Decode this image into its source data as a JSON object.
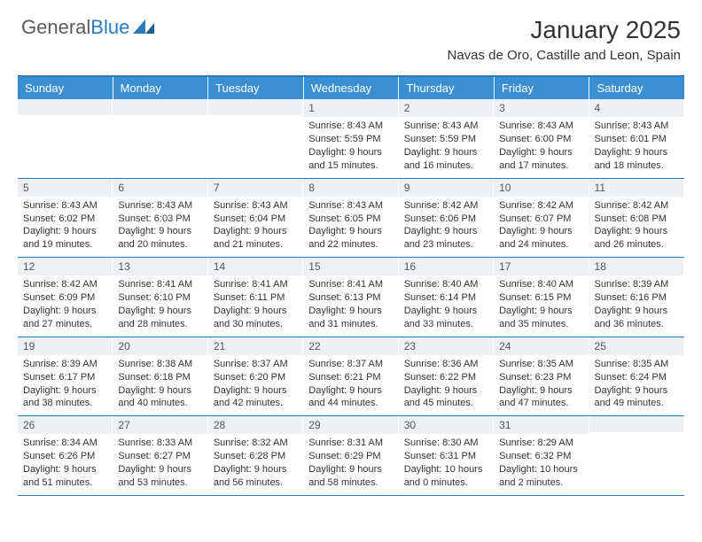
{
  "logo": {
    "text1": "General",
    "text2": "Blue"
  },
  "title": "January 2025",
  "location": "Navas de Oro, Castille and Leon, Spain",
  "colors": {
    "header_bg": "#3b8fd1",
    "border": "#2b7bbc",
    "daynum_bg": "#eef1f4",
    "text": "#333333"
  },
  "day_headers": [
    "Sunday",
    "Monday",
    "Tuesday",
    "Wednesday",
    "Thursday",
    "Friday",
    "Saturday"
  ],
  "weeks": [
    [
      {
        "n": "",
        "sr": "",
        "ss": "",
        "dl": ""
      },
      {
        "n": "",
        "sr": "",
        "ss": "",
        "dl": ""
      },
      {
        "n": "",
        "sr": "",
        "ss": "",
        "dl": ""
      },
      {
        "n": "1",
        "sr": "Sunrise: 8:43 AM",
        "ss": "Sunset: 5:59 PM",
        "dl": "Daylight: 9 hours and 15 minutes."
      },
      {
        "n": "2",
        "sr": "Sunrise: 8:43 AM",
        "ss": "Sunset: 5:59 PM",
        "dl": "Daylight: 9 hours and 16 minutes."
      },
      {
        "n": "3",
        "sr": "Sunrise: 8:43 AM",
        "ss": "Sunset: 6:00 PM",
        "dl": "Daylight: 9 hours and 17 minutes."
      },
      {
        "n": "4",
        "sr": "Sunrise: 8:43 AM",
        "ss": "Sunset: 6:01 PM",
        "dl": "Daylight: 9 hours and 18 minutes."
      }
    ],
    [
      {
        "n": "5",
        "sr": "Sunrise: 8:43 AM",
        "ss": "Sunset: 6:02 PM",
        "dl": "Daylight: 9 hours and 19 minutes."
      },
      {
        "n": "6",
        "sr": "Sunrise: 8:43 AM",
        "ss": "Sunset: 6:03 PM",
        "dl": "Daylight: 9 hours and 20 minutes."
      },
      {
        "n": "7",
        "sr": "Sunrise: 8:43 AM",
        "ss": "Sunset: 6:04 PM",
        "dl": "Daylight: 9 hours and 21 minutes."
      },
      {
        "n": "8",
        "sr": "Sunrise: 8:43 AM",
        "ss": "Sunset: 6:05 PM",
        "dl": "Daylight: 9 hours and 22 minutes."
      },
      {
        "n": "9",
        "sr": "Sunrise: 8:42 AM",
        "ss": "Sunset: 6:06 PM",
        "dl": "Daylight: 9 hours and 23 minutes."
      },
      {
        "n": "10",
        "sr": "Sunrise: 8:42 AM",
        "ss": "Sunset: 6:07 PM",
        "dl": "Daylight: 9 hours and 24 minutes."
      },
      {
        "n": "11",
        "sr": "Sunrise: 8:42 AM",
        "ss": "Sunset: 6:08 PM",
        "dl": "Daylight: 9 hours and 26 minutes."
      }
    ],
    [
      {
        "n": "12",
        "sr": "Sunrise: 8:42 AM",
        "ss": "Sunset: 6:09 PM",
        "dl": "Daylight: 9 hours and 27 minutes."
      },
      {
        "n": "13",
        "sr": "Sunrise: 8:41 AM",
        "ss": "Sunset: 6:10 PM",
        "dl": "Daylight: 9 hours and 28 minutes."
      },
      {
        "n": "14",
        "sr": "Sunrise: 8:41 AM",
        "ss": "Sunset: 6:11 PM",
        "dl": "Daylight: 9 hours and 30 minutes."
      },
      {
        "n": "15",
        "sr": "Sunrise: 8:41 AM",
        "ss": "Sunset: 6:13 PM",
        "dl": "Daylight: 9 hours and 31 minutes."
      },
      {
        "n": "16",
        "sr": "Sunrise: 8:40 AM",
        "ss": "Sunset: 6:14 PM",
        "dl": "Daylight: 9 hours and 33 minutes."
      },
      {
        "n": "17",
        "sr": "Sunrise: 8:40 AM",
        "ss": "Sunset: 6:15 PM",
        "dl": "Daylight: 9 hours and 35 minutes."
      },
      {
        "n": "18",
        "sr": "Sunrise: 8:39 AM",
        "ss": "Sunset: 6:16 PM",
        "dl": "Daylight: 9 hours and 36 minutes."
      }
    ],
    [
      {
        "n": "19",
        "sr": "Sunrise: 8:39 AM",
        "ss": "Sunset: 6:17 PM",
        "dl": "Daylight: 9 hours and 38 minutes."
      },
      {
        "n": "20",
        "sr": "Sunrise: 8:38 AM",
        "ss": "Sunset: 6:18 PM",
        "dl": "Daylight: 9 hours and 40 minutes."
      },
      {
        "n": "21",
        "sr": "Sunrise: 8:37 AM",
        "ss": "Sunset: 6:20 PM",
        "dl": "Daylight: 9 hours and 42 minutes."
      },
      {
        "n": "22",
        "sr": "Sunrise: 8:37 AM",
        "ss": "Sunset: 6:21 PM",
        "dl": "Daylight: 9 hours and 44 minutes."
      },
      {
        "n": "23",
        "sr": "Sunrise: 8:36 AM",
        "ss": "Sunset: 6:22 PM",
        "dl": "Daylight: 9 hours and 45 minutes."
      },
      {
        "n": "24",
        "sr": "Sunrise: 8:35 AM",
        "ss": "Sunset: 6:23 PM",
        "dl": "Daylight: 9 hours and 47 minutes."
      },
      {
        "n": "25",
        "sr": "Sunrise: 8:35 AM",
        "ss": "Sunset: 6:24 PM",
        "dl": "Daylight: 9 hours and 49 minutes."
      }
    ],
    [
      {
        "n": "26",
        "sr": "Sunrise: 8:34 AM",
        "ss": "Sunset: 6:26 PM",
        "dl": "Daylight: 9 hours and 51 minutes."
      },
      {
        "n": "27",
        "sr": "Sunrise: 8:33 AM",
        "ss": "Sunset: 6:27 PM",
        "dl": "Daylight: 9 hours and 53 minutes."
      },
      {
        "n": "28",
        "sr": "Sunrise: 8:32 AM",
        "ss": "Sunset: 6:28 PM",
        "dl": "Daylight: 9 hours and 56 minutes."
      },
      {
        "n": "29",
        "sr": "Sunrise: 8:31 AM",
        "ss": "Sunset: 6:29 PM",
        "dl": "Daylight: 9 hours and 58 minutes."
      },
      {
        "n": "30",
        "sr": "Sunrise: 8:30 AM",
        "ss": "Sunset: 6:31 PM",
        "dl": "Daylight: 10 hours and 0 minutes."
      },
      {
        "n": "31",
        "sr": "Sunrise: 8:29 AM",
        "ss": "Sunset: 6:32 PM",
        "dl": "Daylight: 10 hours and 2 minutes."
      },
      {
        "n": "",
        "sr": "",
        "ss": "",
        "dl": ""
      }
    ]
  ]
}
